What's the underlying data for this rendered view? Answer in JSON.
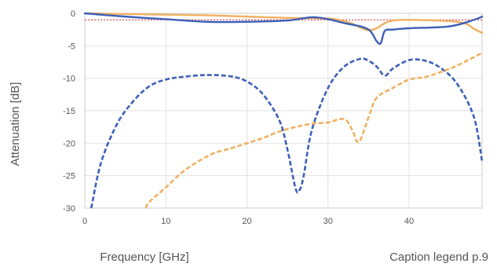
{
  "chart_data": {
    "type": "line",
    "xlabel": "Frequency [GHz]",
    "ylabel": "Attenuation [dB]",
    "caption": "Caption legend p.9",
    "xlim": [
      0,
      49
    ],
    "ylim": [
      -30,
      0
    ],
    "x_ticks": [
      0,
      10,
      20,
      30,
      40
    ],
    "y_ticks": [
      0,
      -5,
      -10,
      -15,
      -20,
      -25,
      -30
    ],
    "grid": true,
    "legend": "none",
    "reference_line": {
      "y": -1,
      "color": "#e05050",
      "style": "dotted"
    },
    "series": [
      {
        "color": "#f0b060",
        "style": "solid",
        "x": [
          0,
          5,
          10,
          15,
          20,
          25,
          30,
          32,
          33,
          34,
          35,
          36,
          37,
          38,
          40,
          45,
          47,
          48,
          49
        ],
        "y": [
          0,
          -0.1,
          -0.2,
          -0.3,
          -0.5,
          -0.7,
          -0.8,
          -1.2,
          -1.6,
          -2.2,
          -2.6,
          -2.3,
          -1.5,
          -1.1,
          -1,
          -1.2,
          -1.6,
          -2.4,
          -3
        ]
      },
      {
        "color": "#3c5fb8",
        "style": "solid",
        "x": [
          0,
          5,
          10,
          15,
          20,
          25,
          28,
          30,
          32,
          34,
          35,
          35.5,
          36,
          36.5,
          37,
          38,
          40,
          45,
          48,
          49
        ],
        "y": [
          0,
          -0.5,
          -0.9,
          -1.3,
          -1.3,
          -1.1,
          -0.6,
          -0.9,
          -1.5,
          -2,
          -2.5,
          -3.2,
          -4.3,
          -4.6,
          -2.7,
          -2.5,
          -2.3,
          -2,
          -1,
          -0.5
        ]
      },
      {
        "color": "#3c5fb8",
        "style": "dashed",
        "x": [
          0.8,
          2,
          4,
          6,
          8,
          10,
          12,
          15,
          18,
          20,
          22,
          24,
          25,
          26,
          26.5,
          27,
          28,
          30,
          32,
          34,
          35,
          36,
          37,
          38,
          40,
          42,
          44,
          46,
          48,
          49
        ],
        "y": [
          -30,
          -23,
          -17,
          -13.5,
          -11.2,
          -10.2,
          -9.8,
          -9.5,
          -9.7,
          -10.5,
          -12.5,
          -16.5,
          -21,
          -27,
          -27.2,
          -25,
          -18,
          -11.5,
          -8.2,
          -7,
          -7.3,
          -8.2,
          -9.6,
          -8.5,
          -7.2,
          -7.3,
          -8.5,
          -11,
          -16,
          -22.8
        ]
      },
      {
        "color": "#f0b060",
        "style": "dashed",
        "x": [
          7.5,
          8,
          10,
          12,
          14,
          16,
          18,
          20,
          22,
          24,
          26,
          28,
          30,
          32,
          33,
          33.5,
          34,
          35,
          36,
          38,
          40,
          42,
          44,
          46,
          49
        ],
        "y": [
          -30,
          -29,
          -26.8,
          -24.5,
          -22.8,
          -21.5,
          -20.8,
          -20,
          -19.2,
          -18.2,
          -17.5,
          -17,
          -16.8,
          -16.3,
          -18,
          -19.6,
          -19.5,
          -16,
          -13,
          -11.5,
          -10.2,
          -9.8,
          -9,
          -8,
          -6.1
        ]
      }
    ]
  }
}
